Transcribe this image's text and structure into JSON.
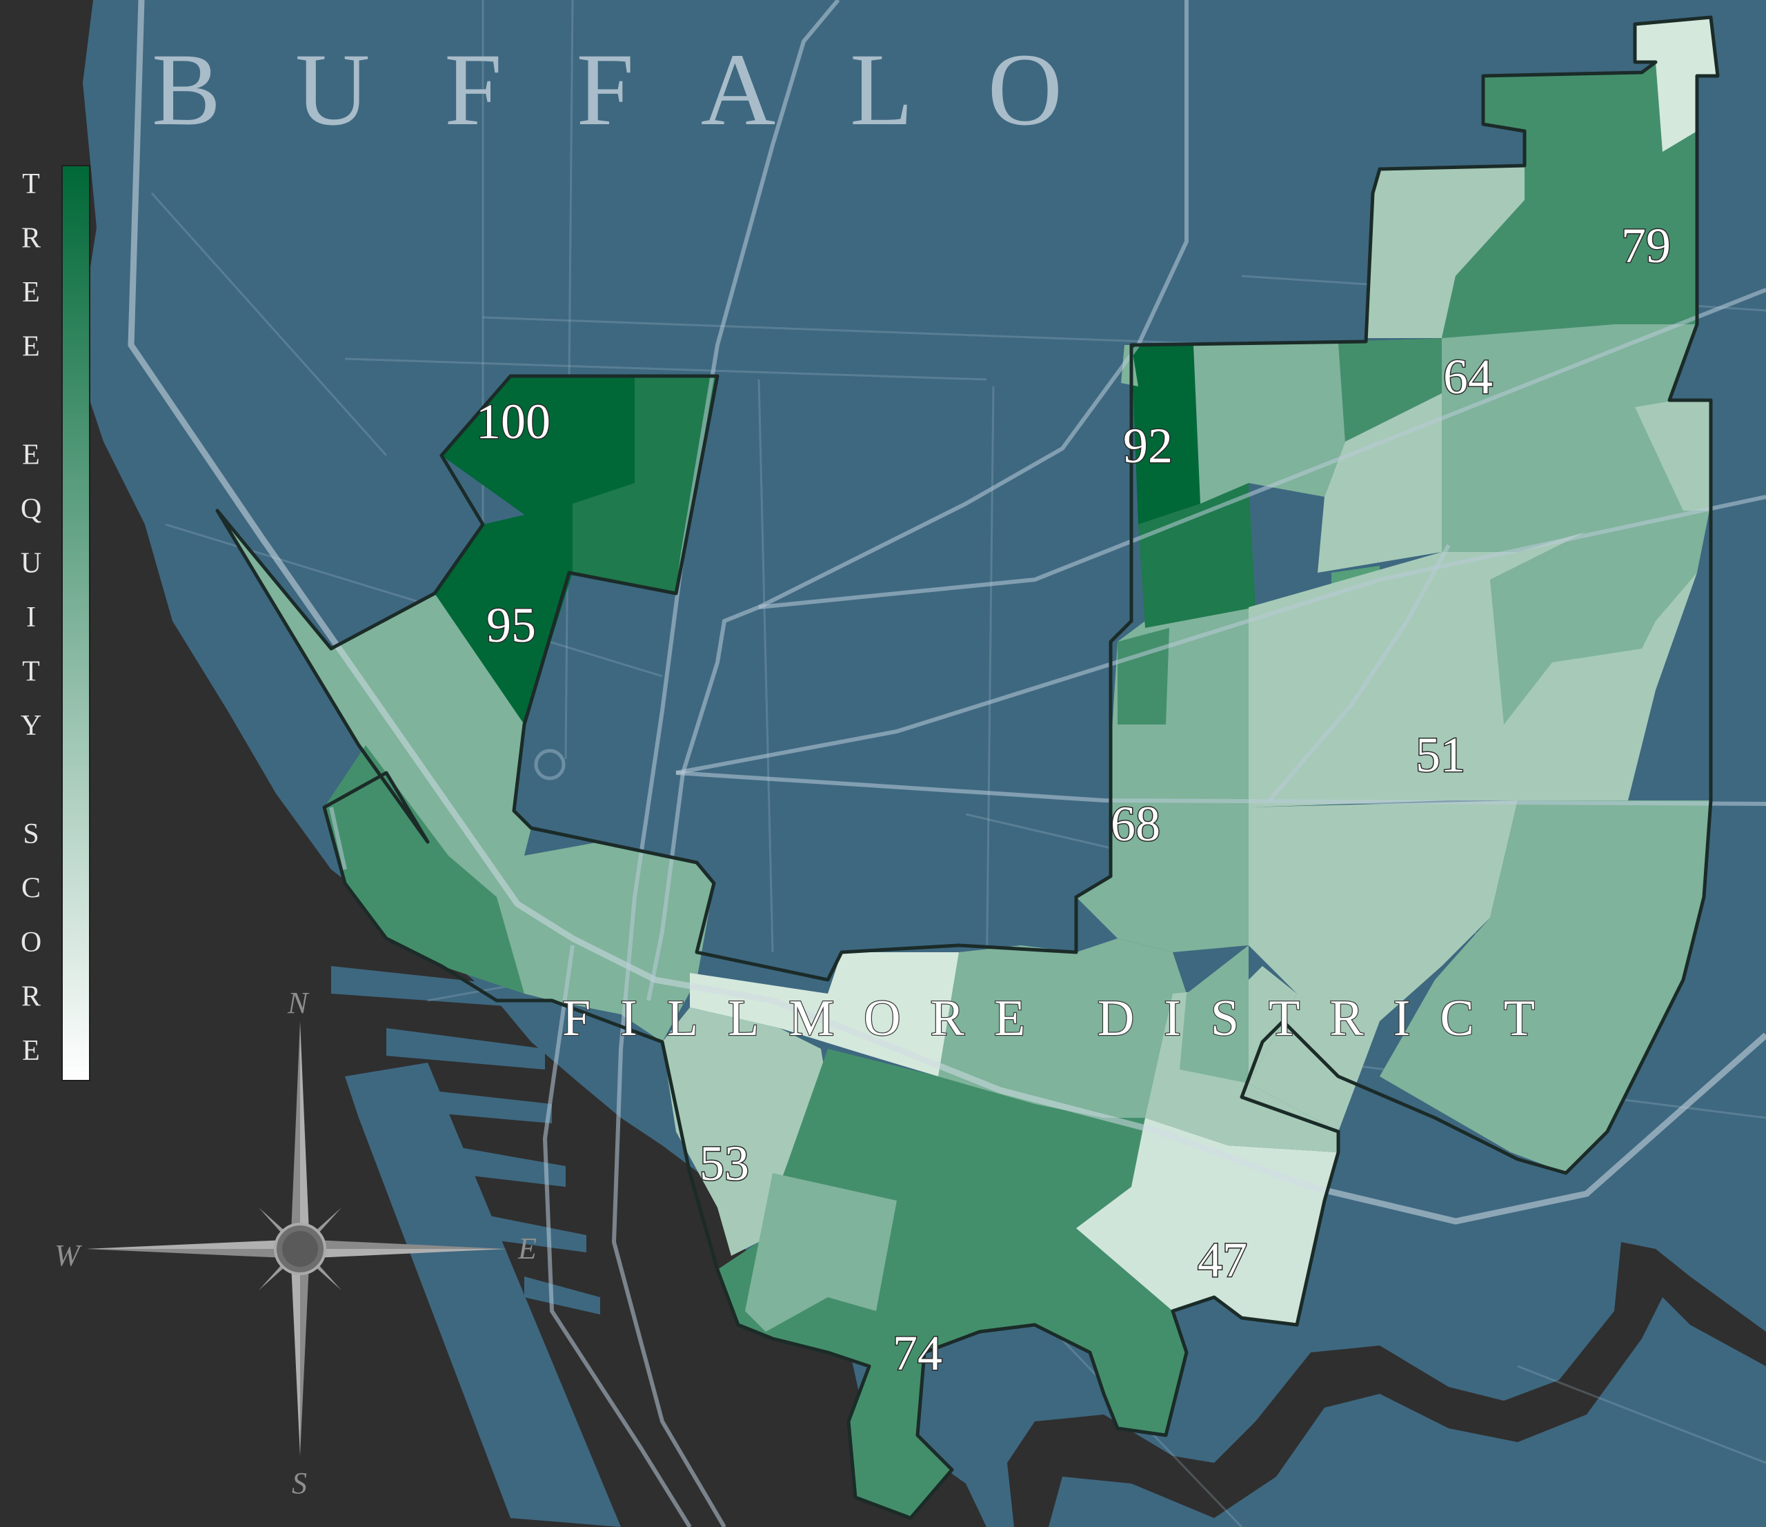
{
  "map": {
    "city_name": "BUFFALO",
    "district_name": "FILLMORE DISTRICT",
    "colors": {
      "water": "#3e6880",
      "land_outside": "#2f2f2f",
      "score_high": "#006837",
      "score_low": "#ffffff",
      "road": "#cfdbe3"
    }
  },
  "legend": {
    "title": "TREE EQUITY SCORE",
    "title_letters": [
      "T",
      "R",
      "E",
      "E",
      "",
      "E",
      "Q",
      "U",
      "I",
      "T",
      "Y",
      "",
      "S",
      "C",
      "O",
      "R",
      "E"
    ],
    "scale_min": 0,
    "scale_max": 100
  },
  "compass": {
    "icon": "compass-rose-icon",
    "north": "N",
    "south": "S",
    "east": "E",
    "west": "W"
  },
  "scores": [
    {
      "id": "nw-100",
      "value": "100"
    },
    {
      "id": "nw-95",
      "value": "95"
    },
    {
      "id": "n-92",
      "value": "92"
    },
    {
      "id": "ne-79",
      "value": "79"
    },
    {
      "id": "ne-64",
      "value": "64"
    },
    {
      "id": "c-68",
      "value": "68"
    },
    {
      "id": "e-51",
      "value": "51"
    },
    {
      "id": "s-53",
      "value": "53"
    },
    {
      "id": "s-74",
      "value": "74"
    },
    {
      "id": "se-47",
      "value": "47"
    }
  ]
}
